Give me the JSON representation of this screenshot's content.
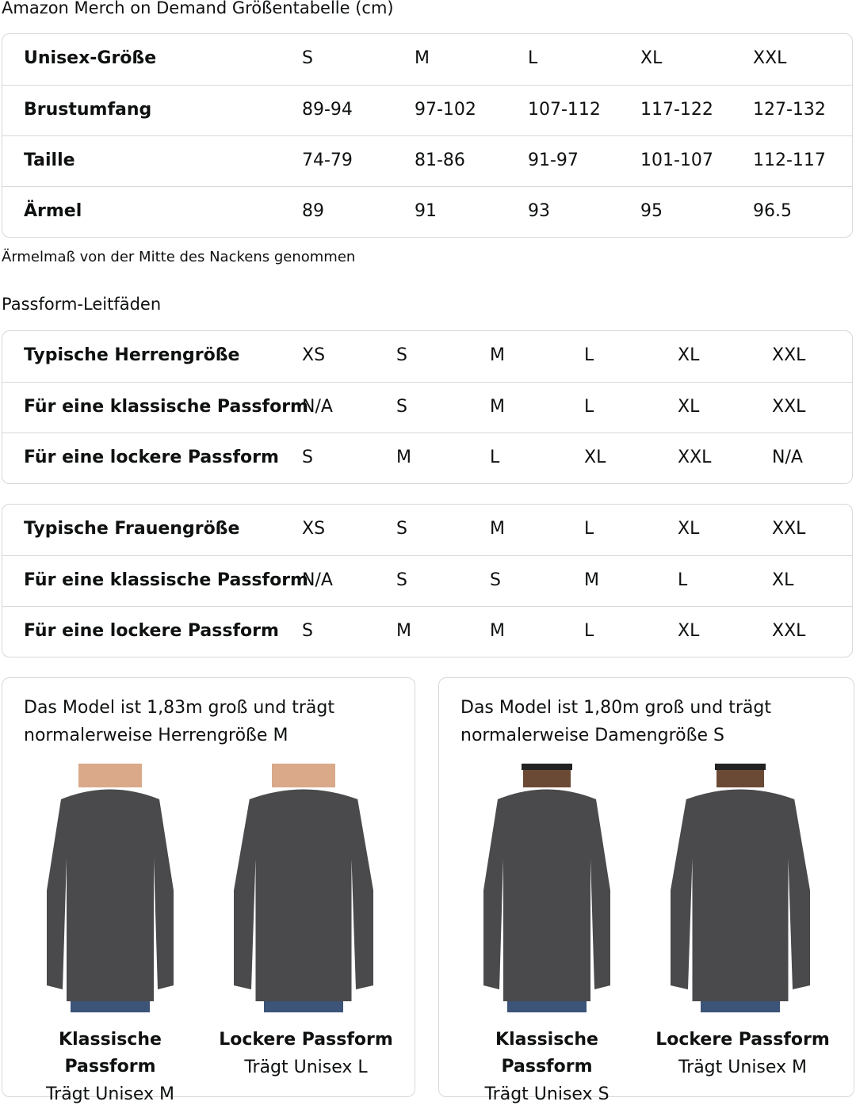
{
  "title": "Amazon Merch on Demand Größentabelle (cm)",
  "size_table": {
    "rows": [
      {
        "label": "Unisex-Größe",
        "values": [
          "S",
          "M",
          "L",
          "XL",
          "XXL"
        ]
      },
      {
        "label": "Brustumfang",
        "values": [
          "89-94",
          "97-102",
          "107-112",
          "117-122",
          "127-132"
        ]
      },
      {
        "label": "Taille",
        "values": [
          "74-79",
          "81-86",
          "91-97",
          "101-107",
          "112-117"
        ]
      },
      {
        "label": "Ärmel",
        "values": [
          "89",
          "91",
          "93",
          "95",
          "96.5"
        ]
      }
    ]
  },
  "note": "Ärmelmaß von der Mitte des Nackens genommen",
  "fit_guide_title": "Passform-Leitfäden",
  "men_table": {
    "rows": [
      {
        "label": "Typische Herrengröße",
        "values": [
          "XS",
          "S",
          "M",
          "L",
          "XL",
          "XXL"
        ]
      },
      {
        "label": "Für eine klassische Passform",
        "values": [
          "N/A",
          "S",
          "M",
          "L",
          "XL",
          "XXL"
        ]
      },
      {
        "label": "Für eine lockere Passform",
        "values": [
          "S",
          "M",
          "L",
          "XL",
          "XXL",
          "N/A"
        ]
      }
    ]
  },
  "women_table": {
    "rows": [
      {
        "label": "Typische Frauengröße",
        "values": [
          "XS",
          "S",
          "M",
          "L",
          "XL",
          "XXL"
        ]
      },
      {
        "label": "Für eine klassische Passform",
        "values": [
          "N/A",
          "S",
          "S",
          "M",
          "L",
          "XL"
        ]
      },
      {
        "label": "Für eine lockere Passform",
        "values": [
          "S",
          "M",
          "M",
          "L",
          "XL",
          "XXL"
        ]
      }
    ]
  },
  "cards": [
    {
      "line1": "Das Model ist 1,83m groß und trägt",
      "line2": "normalerweise Herrengröße M",
      "figures": [
        {
          "title": "Klassische Passform",
          "sub": "Trägt Unisex M"
        },
        {
          "title": "Lockere Passform",
          "sub": "Trägt Unisex L"
        }
      ]
    },
    {
      "line1": "Das Model ist 1,80m groß und trägt",
      "line2": "normalerweise Damengröße S",
      "figures": [
        {
          "title": "Klassische Passform",
          "sub": "Trägt Unisex S"
        },
        {
          "title": "Lockere Passform",
          "sub": "Trägt Unisex M"
        }
      ]
    }
  ]
}
